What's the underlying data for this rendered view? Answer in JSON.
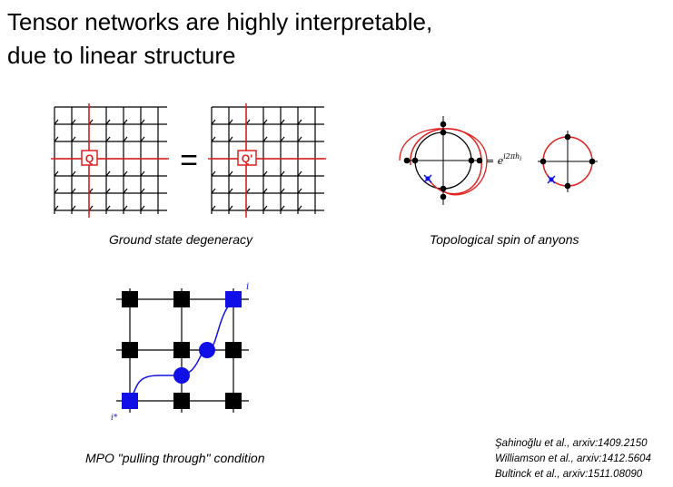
{
  "slide": {
    "title_line1": "Tensor networks are highly interpretable,",
    "title_line2": "due to linear structure"
  },
  "figures": {
    "ground_state": {
      "caption": "Ground state degeneracy",
      "operator_left": "Q",
      "operator_right": "Q'",
      "equals": "="
    },
    "anyons": {
      "caption": "Topological spin of anyons",
      "phase_base": "= e",
      "phase_exponent": "i2πh",
      "phase_subscript": "i",
      "defect_label": "i"
    },
    "mpo": {
      "caption": "MPO \"pulling through\" condition",
      "label_top": "i",
      "label_bottom": "i*"
    }
  },
  "references": [
    "Şahinoğlu et al., arxiv:1409.2150",
    "Williamson et al., arxiv:1412.5604",
    "Bultinck et al., arxiv:1511.08090"
  ],
  "colors": {
    "red": "#e02020",
    "blue": "#1010e6",
    "black": "#000000"
  }
}
